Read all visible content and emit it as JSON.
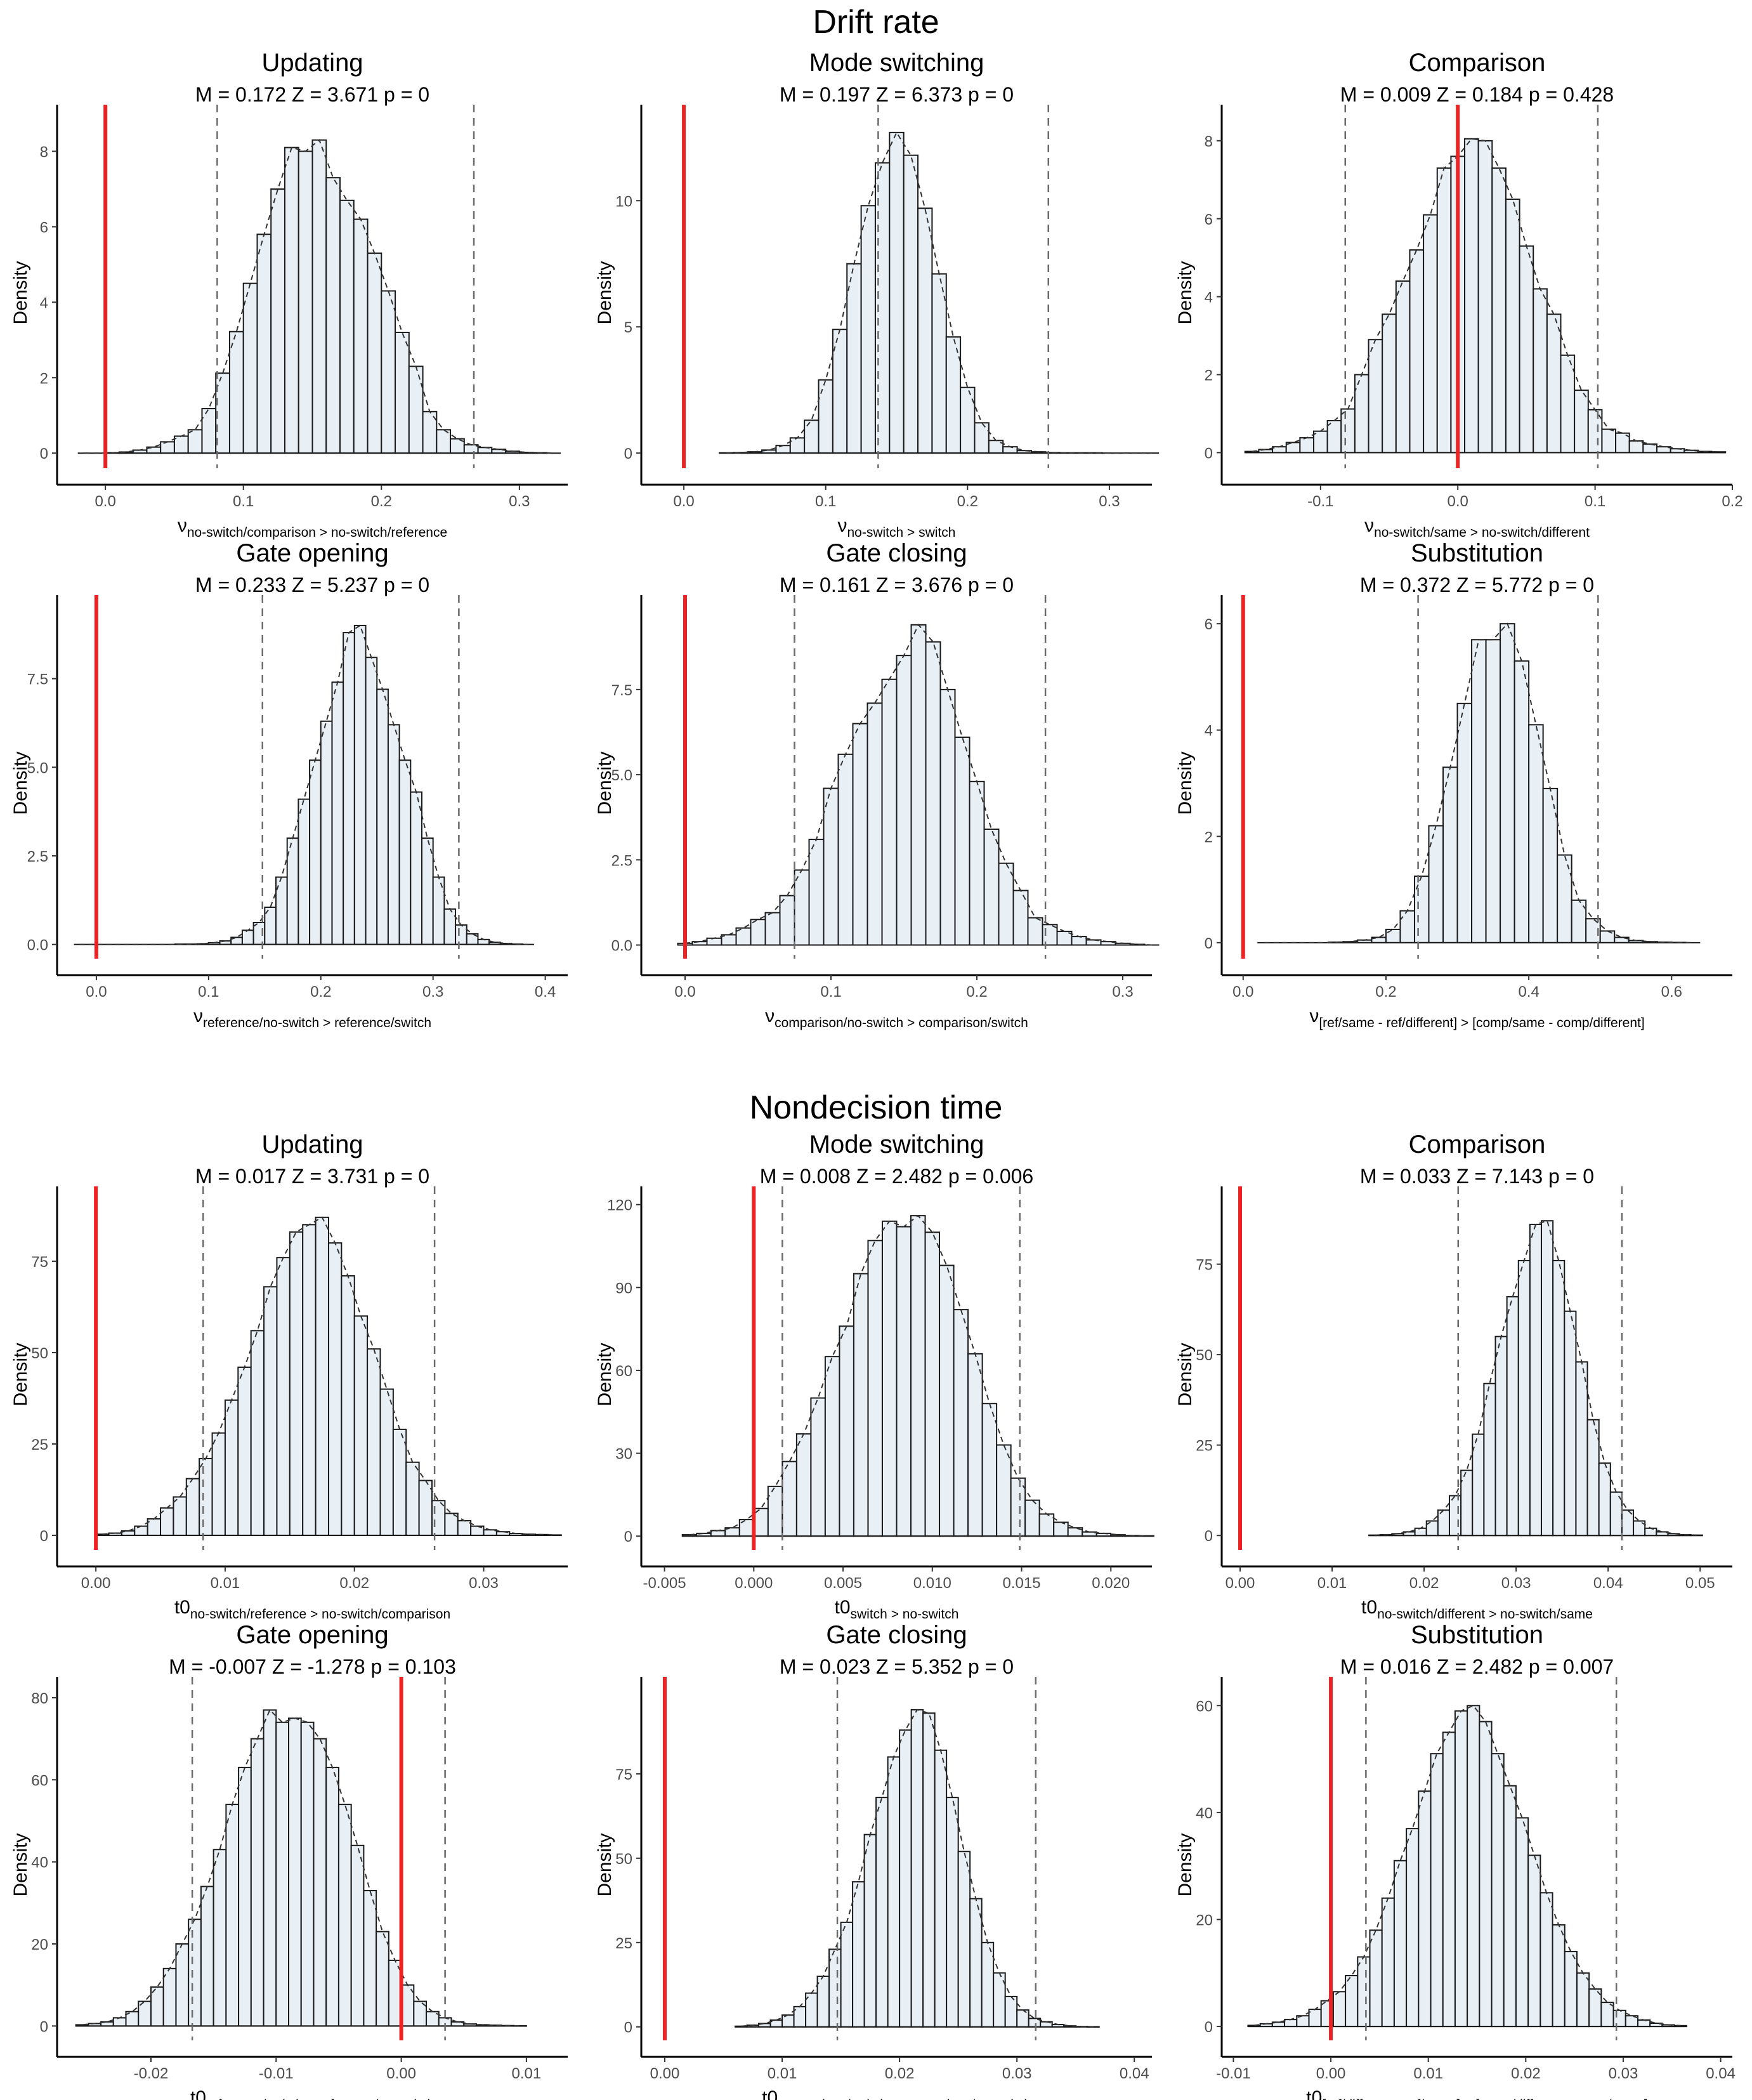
{
  "figure": {
    "section_titles": [
      "Drift rate",
      "Nondecision time"
    ]
  },
  "chart_data": [
    {
      "section": 0,
      "type": "histogram",
      "title": "Updating",
      "subtitle": "M = 0.172  Z = 3.671  p = 0",
      "ylabel": "Density",
      "xlabel_base": "ν",
      "xlabel_sub": "no-switch/comparison > no-switch/reference",
      "xlim": [
        -0.035,
        0.335
      ],
      "ylim": [
        -0.4,
        8.9
      ],
      "xticks": [
        0,
        0.1,
        0.2,
        0.3
      ],
      "xtick_labels": [
        "0.0",
        "0.1",
        "0.2",
        "0.3"
      ],
      "yticks": [
        0,
        2,
        4,
        6,
        8
      ],
      "ytick_labels": [
        "0",
        "2",
        "4",
        "6",
        "8"
      ],
      "red_line": 0,
      "ci": [
        0.081,
        0.267
      ],
      "bins": {
        "start": -0.02,
        "width": 0.01,
        "counts": [
          0,
          0,
          0.01,
          0.03,
          0.08,
          0.16,
          0.3,
          0.45,
          0.62,
          1.18,
          2.12,
          3.22,
          4.5,
          5.8,
          7.0,
          8.1,
          8.0,
          8.3,
          7.3,
          6.7,
          6.2,
          5.3,
          4.3,
          3.2,
          2.3,
          1.1,
          0.62,
          0.38,
          0.22,
          0.15,
          0.1,
          0.05,
          0.02,
          0.01,
          0
        ]
      }
    },
    {
      "section": 0,
      "type": "histogram",
      "title": "Mode switching",
      "subtitle": "M = 0.197  Z = 6.373  p = 0",
      "ylabel": "Density",
      "xlabel_base": "ν",
      "xlabel_sub": "no-switch > switch",
      "xlim": [
        -0.03,
        0.33
      ],
      "ylim": [
        -0.6,
        13.3
      ],
      "xticks": [
        0,
        0.1,
        0.2,
        0.3
      ],
      "xtick_labels": [
        "0.0",
        "0.1",
        "0.2",
        "0.3"
      ],
      "yticks": [
        0,
        5,
        10
      ],
      "ytick_labels": [
        "0",
        "5",
        "10"
      ],
      "red_line": 0,
      "ci": [
        0.137,
        0.257
      ],
      "bins": {
        "start": 0.025,
        "width": 0.01,
        "counts": [
          0.01,
          0.02,
          0.05,
          0.12,
          0.3,
          0.6,
          1.3,
          2.9,
          4.9,
          7.5,
          9.8,
          11.5,
          12.7,
          11.8,
          9.7,
          7.1,
          4.6,
          2.6,
          1.2,
          0.5,
          0.25,
          0.1,
          0.05,
          0.02,
          0.01,
          0.01,
          0.01,
          0,
          0,
          0,
          0
        ]
      }
    },
    {
      "section": 0,
      "type": "histogram",
      "title": "Comparison",
      "subtitle": "M = 0.009  Z = 0.184  p = 0.428",
      "ylabel": "Density",
      "xlabel_base": "ν",
      "xlabel_sub": "no-switch/same > no-switch/different",
      "xlim": [
        -0.172,
        0.2
      ],
      "ylim": [
        -0.4,
        8.6
      ],
      "xticks": [
        -0.1,
        0,
        0.1,
        0.2
      ],
      "xtick_labels": [
        "-0.1",
        "0.0",
        "0.1",
        "0.2"
      ],
      "yticks": [
        0,
        2,
        4,
        6,
        8
      ],
      "ytick_labels": [
        "0",
        "2",
        "4",
        "6",
        "8"
      ],
      "red_line": 0,
      "ci": [
        -0.082,
        0.102
      ],
      "bins": {
        "start": -0.155,
        "width": 0.01,
        "counts": [
          0.03,
          0.08,
          0.15,
          0.26,
          0.38,
          0.55,
          0.82,
          1.12,
          2.0,
          2.9,
          3.55,
          4.4,
          5.2,
          6.1,
          7.3,
          7.6,
          8.05,
          8.0,
          7.3,
          6.5,
          5.3,
          4.2,
          3.55,
          2.5,
          1.6,
          1.1,
          0.6,
          0.5,
          0.3,
          0.22,
          0.15,
          0.1,
          0.06,
          0.03,
          0.02
        ]
      }
    },
    {
      "section": 0,
      "type": "histogram",
      "title": "Gate opening",
      "subtitle": "M = 0.233  Z = 5.237  p = 0",
      "ylabel": "Density",
      "xlabel_base": "ν",
      "xlabel_sub": "reference/no-switch > reference/switch",
      "xlim": [
        -0.035,
        0.42
      ],
      "ylim": [
        -0.4,
        9.5
      ],
      "xticks": [
        0,
        0.1,
        0.2,
        0.3,
        0.4
      ],
      "xtick_labels": [
        "0.0",
        "0.1",
        "0.2",
        "0.3",
        "0.4"
      ],
      "yticks": [
        0,
        2.5,
        5,
        7.5
      ],
      "ytick_labels": [
        "0.0",
        "2.5",
        "5.0",
        "7.5"
      ],
      "red_line": 0,
      "ci": [
        0.148,
        0.323
      ],
      "bins": {
        "start": -0.02,
        "width": 0.01,
        "counts": [
          0,
          0,
          0,
          0,
          0,
          0,
          0,
          0,
          0,
          0.01,
          0.01,
          0.02,
          0.05,
          0.1,
          0.2,
          0.4,
          0.62,
          1.05,
          1.9,
          3.0,
          4.1,
          5.2,
          6.3,
          7.4,
          8.8,
          9.0,
          8.1,
          7.2,
          6.2,
          5.2,
          4.3,
          3.0,
          1.9,
          1.0,
          0.55,
          0.3,
          0.14,
          0.06,
          0.03,
          0.01,
          0
        ]
      }
    },
    {
      "section": 0,
      "type": "histogram",
      "title": "Gate closing",
      "subtitle": "M = 0.161  Z = 3.676  p = 0",
      "ylabel": "Density",
      "xlabel_base": "ν",
      "xlabel_sub": "comparison/no-switch > comparison/switch",
      "xlim": [
        -0.03,
        0.32
      ],
      "ylim": [
        -0.4,
        9.9
      ],
      "xticks": [
        0,
        0.1,
        0.2,
        0.3
      ],
      "xtick_labels": [
        "0.0",
        "0.1",
        "0.2",
        "0.3"
      ],
      "yticks": [
        0,
        2.5,
        5,
        7.5
      ],
      "ytick_labels": [
        "0.0",
        "2.5",
        "5.0",
        "7.5"
      ],
      "red_line": 0,
      "ci": [
        0.075,
        0.247
      ],
      "bins": {
        "start": -0.005,
        "width": 0.01,
        "counts": [
          0.05,
          0.1,
          0.2,
          0.3,
          0.5,
          0.75,
          0.95,
          1.45,
          2.2,
          3.1,
          4.6,
          5.6,
          6.5,
          7.1,
          7.8,
          8.5,
          9.4,
          8.9,
          7.5,
          6.1,
          4.8,
          3.4,
          2.4,
          1.6,
          0.8,
          0.6,
          0.4,
          0.25,
          0.15,
          0.1,
          0.05,
          0.02,
          0
        ]
      }
    },
    {
      "section": 0,
      "type": "histogram",
      "title": "Substitution",
      "subtitle": "M = 0.372  Z = 5.772  p = 0",
      "ylabel": "Density",
      "xlabel_base": "ν",
      "xlabel_sub": "[ref/same - ref/different] > [comp/same - comp/different]",
      "xlim": [
        -0.03,
        0.685
      ],
      "ylim": [
        -0.3,
        6.3
      ],
      "xticks": [
        0,
        0.2,
        0.4,
        0.6
      ],
      "xtick_labels": [
        "0.0",
        "0.2",
        "0.4",
        "0.6"
      ],
      "yticks": [
        0,
        2,
        4,
        6
      ],
      "ytick_labels": [
        "0",
        "2",
        "4",
        "6"
      ],
      "red_line": 0,
      "ci": [
        0.245,
        0.497
      ],
      "bins": {
        "start": 0.02,
        "width": 0.02,
        "counts": [
          0,
          0,
          0,
          0,
          0,
          0.01,
          0.02,
          0.05,
          0.1,
          0.25,
          0.6,
          1.25,
          2.2,
          3.3,
          4.5,
          5.7,
          5.7,
          6.0,
          5.3,
          4.1,
          2.9,
          1.65,
          0.8,
          0.45,
          0.22,
          0.1,
          0.04,
          0.02,
          0.01,
          0.005,
          0
        ]
      }
    },
    {
      "section": 1,
      "type": "histogram",
      "title": "Updating",
      "subtitle": "M = 0.017  Z = 3.731  p = 0",
      "ylabel": "Density",
      "xlabel_base": "t0",
      "xlabel_sub": "no-switch/reference > no-switch/comparison",
      "xlim": [
        -0.003,
        0.0365
      ],
      "ylim": [
        -4,
        92
      ],
      "xticks": [
        0,
        0.01,
        0.02,
        0.03
      ],
      "xtick_labels": [
        "0.00",
        "0.01",
        "0.02",
        "0.03"
      ],
      "yticks": [
        0,
        25,
        50,
        75
      ],
      "ytick_labels": [
        "0",
        "25",
        "50",
        "75"
      ],
      "red_line": 0,
      "ci": [
        0.0083,
        0.0262
      ],
      "bins": {
        "start": 0,
        "width": 0.001,
        "counts": [
          0.3,
          0.6,
          1.2,
          2.5,
          4.5,
          7.5,
          10.5,
          15.5,
          21,
          28,
          37,
          46,
          56,
          68,
          76,
          83,
          85,
          87,
          80,
          71,
          60,
          51,
          40,
          29,
          20,
          15,
          9.5,
          6,
          4,
          2.5,
          1.5,
          1,
          0.5,
          0.3,
          0.2,
          0.1
        ]
      }
    },
    {
      "section": 1,
      "type": "histogram",
      "title": "Mode switching",
      "subtitle": "M = 0.008  Z = 2.482  p = 0.006",
      "ylabel": "Density",
      "xlabel_base": "t0",
      "xlabel_sub": "switch > no-switch",
      "xlim": [
        -0.0063,
        0.0223
      ],
      "ylim": [
        -5,
        122
      ],
      "xticks": [
        -0.005,
        0,
        0.005,
        0.01,
        0.015,
        0.02
      ],
      "xtick_labels": [
        "-0.005",
        "0.000",
        "0.005",
        "0.010",
        "0.015",
        "0.020"
      ],
      "yticks": [
        0,
        30,
        60,
        90,
        120
      ],
      "ytick_labels": [
        "0",
        "30",
        "60",
        "90",
        "120"
      ],
      "red_line": 0,
      "ci": [
        0.0016,
        0.0149
      ],
      "bins": {
        "start": -0.004,
        "width": 0.0008,
        "counts": [
          0.5,
          1,
          2,
          3,
          6,
          10,
          18,
          27,
          37,
          50,
          65,
          76,
          95,
          107,
          114,
          112,
          116,
          110,
          98,
          82,
          66,
          48,
          33,
          21,
          13,
          8,
          5,
          3,
          1.5,
          1,
          0.5,
          0.2,
          0.1
        ]
      }
    },
    {
      "section": 1,
      "type": "histogram",
      "title": "Comparison",
      "subtitle": "M = 0.033  Z = 7.143  p = 0",
      "ylabel": "Density",
      "xlabel_base": "t0",
      "xlabel_sub": "no-switch/different > no-switch/same",
      "xlim": [
        -0.002,
        0.0535
      ],
      "ylim": [
        -4,
        93
      ],
      "xticks": [
        0,
        0.01,
        0.02,
        0.03,
        0.04,
        0.05
      ],
      "xtick_labels": [
        "0.00",
        "0.01",
        "0.02",
        "0.03",
        "0.04",
        "0.05"
      ],
      "yticks": [
        0,
        25,
        50,
        75
      ],
      "ytick_labels": [
        "0",
        "25",
        "50",
        "75"
      ],
      "red_line": 0,
      "ci": [
        0.0237,
        0.0415
      ],
      "bins": {
        "start": 0.014,
        "width": 0.00125,
        "counts": [
          0.1,
          0.2,
          0.5,
          1,
          2,
          4,
          7,
          11,
          18,
          28,
          42,
          55,
          66,
          76,
          86,
          87,
          76,
          62,
          48,
          32,
          20,
          12,
          7,
          4,
          2,
          1,
          0.5,
          0.2,
          0.1
        ]
      }
    },
    {
      "section": 1,
      "type": "histogram",
      "title": "Gate opening",
      "subtitle": "M = -0.007  Z = -1.278  p = 0.103",
      "ylabel": "Density",
      "xlabel_base": "t0",
      "xlabel_sub": "reference/switch > reference/no-switch",
      "xlim": [
        -0.0275,
        0.0133
      ],
      "ylim": [
        -3.5,
        82
      ],
      "xticks": [
        -0.02,
        -0.01,
        0,
        0.01
      ],
      "xtick_labels": [
        "-0.02",
        "-0.01",
        "0.00",
        "0.01"
      ],
      "yticks": [
        0,
        20,
        40,
        60,
        80
      ],
      "ytick_labels": [
        "0",
        "20",
        "40",
        "60",
        "80"
      ],
      "red_line": 0,
      "ci": [
        -0.0167,
        0.0035
      ],
      "bins": {
        "start": -0.026,
        "width": 0.001,
        "counts": [
          0.3,
          0.6,
          1,
          2,
          3.5,
          6,
          9.5,
          14,
          20,
          26,
          34,
          43,
          54,
          63,
          70,
          77,
          74,
          75,
          74,
          70,
          63,
          54,
          44,
          33,
          23,
          16,
          10,
          6,
          3.5,
          2,
          1,
          0.5,
          0.3,
          0.2,
          0.1,
          0.05
        ]
      }
    },
    {
      "section": 1,
      "type": "histogram",
      "title": "Gate closing",
      "subtitle": "M = 0.023  Z = 5.352  p = 0",
      "ylabel": "Density",
      "xlabel_base": "t0",
      "xlabel_sub": "comparison/switch > comparison/no-switch",
      "xlim": [
        -0.002,
        0.0415
      ],
      "ylim": [
        -4,
        100
      ],
      "xticks": [
        0,
        0.01,
        0.02,
        0.03,
        0.04
      ],
      "xtick_labels": [
        "0.00",
        "0.01",
        "0.02",
        "0.03",
        "0.04"
      ],
      "yticks": [
        0,
        25,
        50,
        75
      ],
      "ytick_labels": [
        "0",
        "25",
        "50",
        "75"
      ],
      "red_line": 0,
      "ci": [
        0.0147,
        0.0316
      ],
      "bins": {
        "start": 0.006,
        "width": 0.001,
        "counts": [
          0.2,
          0.5,
          1,
          2,
          3.5,
          6,
          10,
          15,
          23,
          31,
          43,
          57,
          68,
          80,
          88,
          94,
          93,
          82,
          68,
          52,
          38,
          25,
          16,
          9,
          5,
          2.5,
          1.5,
          0.7,
          0.3,
          0.1,
          0.05
        ]
      }
    },
    {
      "section": 1,
      "type": "histogram",
      "title": "Substitution",
      "subtitle": "M = 0.016  Z = 2.482  p = 0.007",
      "ylabel": "Density",
      "xlabel_base": "t0",
      "xlabel_sub": "[ref/different - ref/same] > [comp/different - comp/same]",
      "xlim": [
        -0.0112,
        0.0412
      ],
      "ylim": [
        -2.6,
        63
      ],
      "xticks": [
        -0.01,
        0,
        0.01,
        0.02,
        0.03,
        0.04
      ],
      "xtick_labels": [
        "-0.01",
        "0.00",
        "0.01",
        "0.02",
        "0.03",
        "0.04"
      ],
      "yticks": [
        0,
        20,
        40,
        60
      ],
      "ytick_labels": [
        "0",
        "20",
        "40",
        "60"
      ],
      "red_line": 0,
      "ci": [
        0.0036,
        0.0293
      ],
      "bins": {
        "start": -0.0085,
        "width": 0.00125,
        "counts": [
          0.2,
          0.5,
          0.8,
          1.3,
          2,
          3.2,
          4.8,
          6.5,
          9.5,
          13,
          18,
          24,
          31,
          37,
          44,
          51,
          55,
          59,
          60,
          57,
          51,
          45,
          39,
          32,
          25,
          19,
          14,
          10,
          7,
          4.5,
          3,
          2,
          1.2,
          0.6,
          0.3,
          0.15
        ]
      }
    }
  ]
}
